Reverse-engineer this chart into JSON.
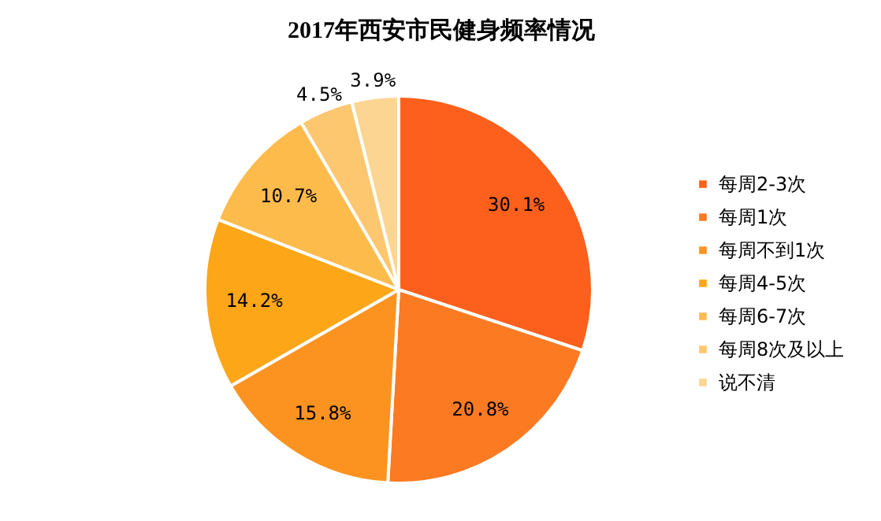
{
  "chart_data": {
    "type": "pie",
    "title": "2017年西安市民健身频率情况",
    "categories": [
      "每周2-3次",
      "每周1次",
      "每周不到1次",
      "每周4-5次",
      "每周6-7次",
      "每周8次及以上",
      "说不清"
    ],
    "values": [
      30.1,
      20.8,
      15.8,
      14.2,
      10.7,
      4.5,
      3.9
    ],
    "value_labels": [
      "30.1%",
      "20.8%",
      "15.8%",
      "14.2%",
      "10.7%",
      "4.5%",
      "3.9%"
    ],
    "colors": [
      "#fc601c",
      "#fc7a22",
      "#fc9320",
      "#fca618",
      "#fdbb4c",
      "#fdc770",
      "#fdd592"
    ],
    "legend": "right"
  }
}
